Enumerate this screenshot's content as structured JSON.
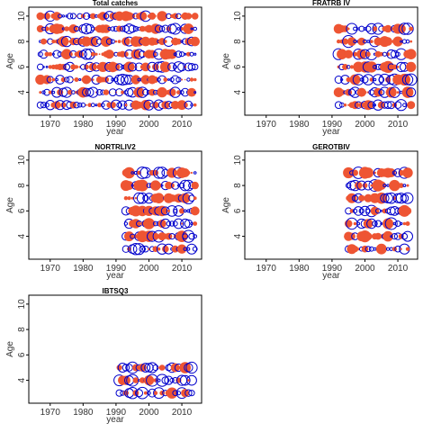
{
  "chart_data": [
    {
      "type": "scatter",
      "title": "Total catches",
      "xlabel": "year",
      "ylabel": "Age",
      "xlim": [
        1963.5,
        2016
      ],
      "ylim": [
        2.2,
        10.7
      ],
      "xticks": [
        1970,
        1980,
        1990,
        2000,
        2010
      ],
      "yticks": [
        4,
        6,
        8,
        10
      ],
      "years": [
        1967,
        2014
      ],
      "ages": [
        3,
        4,
        5,
        6,
        7,
        8,
        9,
        10
      ],
      "seed": 11,
      "sizeScale": 1.0,
      "colors": {
        "positive": "#ee5533",
        "negative": "#0000cc"
      }
    },
    {
      "type": "scatter",
      "title": "FRATRB IV",
      "xlabel": "year",
      "ylabel": "Age",
      "xlim": [
        1963.5,
        2016
      ],
      "ylim": [
        2.2,
        10.7
      ],
      "xticks": [
        1970,
        1980,
        1990,
        2000,
        2010
      ],
      "yticks": [
        4,
        6,
        8,
        10
      ],
      "years": [
        1992,
        2014
      ],
      "ages": [
        3,
        4,
        5,
        6,
        7,
        8,
        9
      ],
      "seed": 23,
      "sizeScale": 1.1,
      "colors": {
        "positive": "#ee5533",
        "negative": "#0000cc"
      }
    },
    {
      "type": "scatter",
      "title": "NORTRLIV2",
      "xlabel": "year",
      "ylabel": "Age",
      "xlim": [
        1963.5,
        2016
      ],
      "ylim": [
        2.2,
        10.7
      ],
      "xticks": [
        1970,
        1980,
        1990,
        2000,
        2010
      ],
      "yticks": [
        4,
        6,
        8,
        10
      ],
      "years": [
        1993,
        2014
      ],
      "ages": [
        3,
        4,
        5,
        6,
        7,
        8,
        9
      ],
      "seed": 37,
      "sizeScale": 1.1,
      "colors": {
        "positive": "#ee5533",
        "negative": "#0000cc"
      }
    },
    {
      "type": "scatter",
      "title": "GEROTBIV",
      "xlabel": "year",
      "ylabel": "Age",
      "xlim": [
        1963.5,
        2016
      ],
      "ylim": [
        2.2,
        10.7
      ],
      "xticks": [
        1970,
        1980,
        1990,
        2000,
        2010
      ],
      "yticks": [
        4,
        6,
        8,
        10
      ],
      "years": [
        1995,
        2013
      ],
      "ages": [
        3,
        4,
        5,
        6,
        7,
        8,
        9
      ],
      "seed": 51,
      "sizeScale": 1.1,
      "colors": {
        "positive": "#ee5533",
        "negative": "#0000cc"
      }
    },
    {
      "type": "scatter",
      "title": "IBTSQ3",
      "xlabel": "year",
      "ylabel": "Age",
      "xlim": [
        1963.5,
        2016
      ],
      "ylim": [
        2.2,
        10.7
      ],
      "xticks": [
        1970,
        1980,
        1990,
        2000,
        2010
      ],
      "yticks": [
        4,
        6,
        8,
        10
      ],
      "years": [
        1991,
        2013
      ],
      "ages": [
        3,
        4,
        5
      ],
      "seed": 67,
      "sizeScale": 1.1,
      "colors": {
        "positive": "#ee5533",
        "negative": "#0000cc"
      }
    }
  ]
}
